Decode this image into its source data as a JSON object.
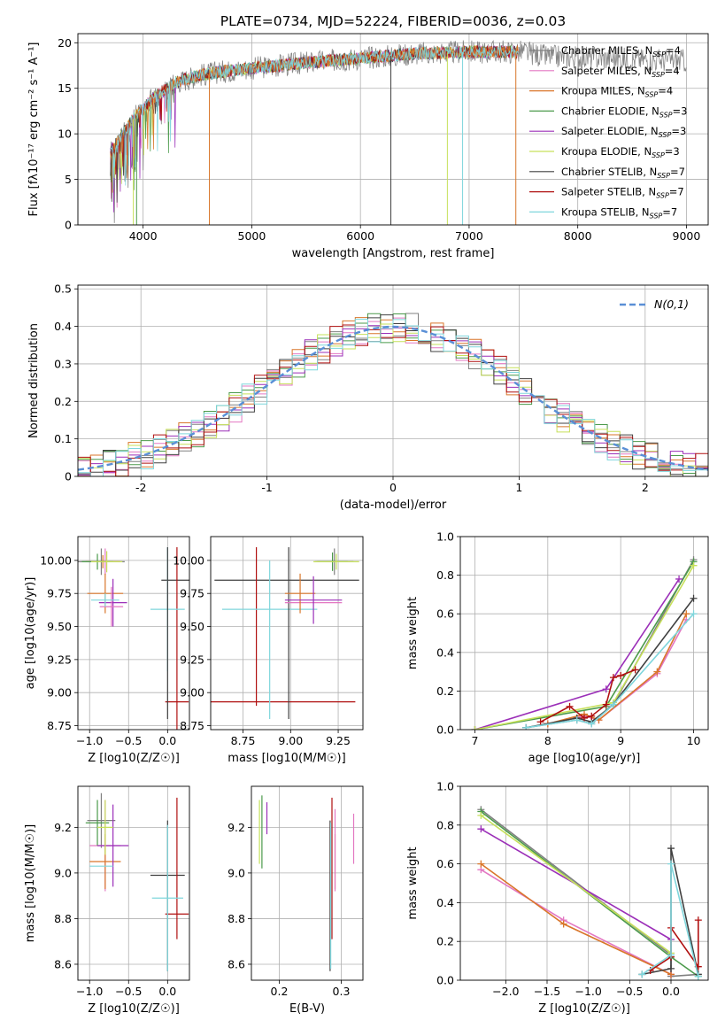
{
  "figure_title": "PLATE=0734, MJD=52224, FIBERID=0036, z=0.03",
  "models": [
    {
      "name": "Chabrier MILES",
      "nssp": "4",
      "color": "#808080"
    },
    {
      "name": "Salpeter MILES",
      "nssp": "4",
      "color": "#e377c2"
    },
    {
      "name": "Kroupa MILES",
      "nssp": "4",
      "color": "#d9762a"
    },
    {
      "name": "Chabrier ELODIE",
      "nssp": "3",
      "color": "#4b9a4b"
    },
    {
      "name": "Salpeter ELODIE",
      "nssp": "3",
      "color": "#9b2fb8"
    },
    {
      "name": "Kroupa ELODIE",
      "nssp": "3",
      "color": "#c6e05a"
    },
    {
      "name": "Chabrier STELIB",
      "nssp": "7",
      "color": "#404040"
    },
    {
      "name": "Salpeter STELIB",
      "nssp": "7",
      "color": "#b01010"
    },
    {
      "name": "Kroupa STELIB",
      "nssp": "7",
      "color": "#7fd6dc"
    }
  ],
  "chart_data": [
    {
      "id": "spectrum",
      "type": "line",
      "xlabel": "wavelength [Angstrom, rest frame]",
      "ylabel": "Flux [fλ10⁻¹⁷ erg cm⁻² s⁻¹ A⁻¹]",
      "xlim": [
        3400,
        9200
      ],
      "ylim": [
        0,
        21
      ],
      "xticks": [
        4000,
        5000,
        6000,
        7000,
        8000,
        9000
      ],
      "yticks": [
        0,
        5,
        10,
        15,
        20
      ],
      "continuum_x": [
        3700,
        3900,
        4100,
        4300,
        4500,
        4700,
        5000,
        5500,
        6000,
        6500,
        7000,
        7500,
        7700,
        8000,
        8500,
        9000
      ],
      "continuum_y": [
        8,
        11.5,
        14,
        15.6,
        16.4,
        16.8,
        17.2,
        17.8,
        18.3,
        18.8,
        19,
        19,
        18.5,
        18.4,
        18.2,
        18.0
      ]
    },
    {
      "id": "residuals",
      "type": "line",
      "xlabel": "(data-model)/error",
      "ylabel": "Normed distribution",
      "xlim": [
        -2.5,
        2.5
      ],
      "ylim": [
        0,
        0.51
      ],
      "xticks": [
        -2,
        -1,
        0,
        1,
        2
      ],
      "yticks": [
        0,
        0.1,
        0.2,
        0.3,
        0.4,
        0.5
      ],
      "legend": "N(0,1)",
      "gauss_color": "#5a8fd6",
      "legend_position": "top-right"
    },
    {
      "id": "age_vs_Z",
      "type": "scatter",
      "xlabel": "Z [log10(Z/Z☉)]",
      "ylabel": "age  [log10(age/yr)]",
      "xlim": [
        -1.15,
        0.28
      ],
      "ylim": [
        8.72,
        10.18
      ],
      "xticks": [
        -1.0,
        -0.5,
        0.0
      ],
      "xticklabels": [
        "−1.0",
        "−0.5",
        "0.0"
      ],
      "yticks": [
        8.75,
        9.0,
        9.25,
        9.5,
        9.75,
        10.0
      ],
      "yticklabels": [
        "8.75",
        "9.00",
        "9.25",
        "9.50",
        "9.75",
        "10.00"
      ],
      "points": [
        {
          "m": 0,
          "x": -0.85,
          "y": 9.99,
          "xe": 0.3,
          "ye": 0.1
        },
        {
          "m": 1,
          "x": -0.8,
          "y": 9.99,
          "xe": 0.2,
          "ye": 0.1
        },
        {
          "m": 2,
          "x": -0.8,
          "y": 9.75,
          "xe": 0.23,
          "ye": 0.15
        },
        {
          "m": 2,
          "x": -0.83,
          "y": 9.99,
          "xe": 0.22,
          "ye": 0.05
        },
        {
          "m": 3,
          "x": -0.9,
          "y": 9.99,
          "xe": 0.2,
          "ye": 0.06
        },
        {
          "m": 4,
          "x": -0.7,
          "y": 9.68,
          "xe": 0.18,
          "ye": 0.18
        },
        {
          "m": 5,
          "x": -0.78,
          "y": 9.99,
          "xe": 0.2,
          "ye": 0.08
        },
        {
          "m": 6,
          "x": 0.12,
          "y": 9.85,
          "xe": 0.2,
          "ye": 0.0
        },
        {
          "m": 7,
          "x": 0.12,
          "y": 8.93,
          "xe": 0.15,
          "ye": 1.17
        },
        {
          "m": 8,
          "x": 0.0,
          "y": 9.63,
          "xe": 0.22,
          "ye": 0.47
        },
        {
          "m": 6,
          "x": 0.0,
          "y": 9.45,
          "xe": 0.0,
          "ye": 0.65
        },
        {
          "m": 1,
          "x": -0.72,
          "y": 9.65,
          "xe": 0.15,
          "ye": 0.15
        },
        {
          "m": 8,
          "x": -0.8,
          "y": 9.7,
          "xe": 0.18,
          "ye": 0.05
        }
      ]
    },
    {
      "id": "age_vs_mass",
      "type": "scatter",
      "xlabel": "mass [log10(M/M☉)]",
      "ylabel": "",
      "xlim": [
        8.58,
        9.38
      ],
      "ylim": [
        8.72,
        10.18
      ],
      "xticks": [
        8.75,
        9.0,
        9.25
      ],
      "xticklabels": [
        "8.75",
        "9.00",
        "9.25"
      ],
      "yticks": [
        8.75,
        9.0,
        9.25,
        9.5,
        9.75,
        10.0
      ],
      "yticklabels": [
        "8.75",
        "9.00",
        "9.25",
        "9.50",
        "9.75",
        "10.00"
      ],
      "points": [
        {
          "m": 6,
          "x": 8.98,
          "y": 9.85,
          "xe": 0.38,
          "ye": 0.0
        },
        {
          "m": 7,
          "x": 8.82,
          "y": 8.93,
          "xe": 0.52,
          "ye": 0.0
        },
        {
          "m": 7,
          "x": 8.82,
          "y": 9.5,
          "xe": 0.0,
          "ye": 0.6
        },
        {
          "m": 8,
          "x": 8.89,
          "y": 9.63,
          "xe": 0.25,
          "ye": 0.0
        },
        {
          "m": 8,
          "x": 8.89,
          "y": 9.4,
          "xe": 0.0,
          "ye": 0.6
        },
        {
          "m": 6,
          "x": 8.99,
          "y": 9.45,
          "xe": 0.0,
          "ye": 0.65
        },
        {
          "m": 0,
          "x": 9.23,
          "y": 9.99,
          "xe": 0.1,
          "ye": 0.1
        },
        {
          "m": 1,
          "x": 9.12,
          "y": 9.68,
          "xe": 0.15,
          "ye": 0.0
        },
        {
          "m": 2,
          "x": 9.05,
          "y": 9.75,
          "xe": 0.08,
          "ye": 0.15
        },
        {
          "m": 3,
          "x": 9.22,
          "y": 9.99,
          "xe": 0.08,
          "ye": 0.07
        },
        {
          "m": 4,
          "x": 9.12,
          "y": 9.7,
          "xe": 0.15,
          "ye": 0.18
        },
        {
          "m": 5,
          "x": 9.24,
          "y": 9.99,
          "xe": 0.12,
          "ye": 0.06
        }
      ]
    },
    {
      "id": "weight_vs_age",
      "type": "line",
      "xlabel": "age  [log10(age/yr)]",
      "ylabel": "mass weight",
      "xlim": [
        6.8,
        10.2
      ],
      "ylim": [
        0,
        1.0
      ],
      "xticks": [
        7,
        8,
        9,
        10
      ],
      "xticklabels": [
        "7",
        "8",
        "9",
        "10"
      ],
      "yticks": [
        0,
        0.2,
        0.4,
        0.6,
        0.8,
        1.0
      ],
      "yticklabels": [
        "0.0",
        "0.2",
        "0.4",
        "0.6",
        "0.8",
        "1.0"
      ],
      "series": [
        {
          "m": 0,
          "x": [
            7.7,
            8.4,
            8.6,
            8.9,
            10.0
          ],
          "y": [
            0.01,
            0.05,
            0.03,
            0.13,
            0.88
          ]
        },
        {
          "m": 1,
          "x": [
            8.0,
            8.5,
            8.7,
            9.5,
            9.9
          ],
          "y": [
            0.03,
            0.07,
            0.05,
            0.29,
            0.57
          ]
        },
        {
          "m": 2,
          "x": [
            8.0,
            8.5,
            8.7,
            9.5,
            9.9
          ],
          "y": [
            0.03,
            0.08,
            0.05,
            0.3,
            0.6
          ]
        },
        {
          "m": 3,
          "x": [
            7.0,
            8.8,
            10.0
          ],
          "y": [
            0.0,
            0.12,
            0.87
          ]
        },
        {
          "m": 4,
          "x": [
            7.0,
            8.8,
            9.8
          ],
          "y": [
            0.0,
            0.21,
            0.78
          ]
        },
        {
          "m": 5,
          "x": [
            7.0,
            8.9,
            10.0
          ],
          "y": [
            0.0,
            0.14,
            0.85
          ]
        },
        {
          "m": 6,
          "x": [
            7.7,
            8.4,
            8.6,
            8.9,
            10.0
          ],
          "y": [
            0.01,
            0.06,
            0.04,
            0.13,
            0.68
          ]
        },
        {
          "m": 7,
          "x": [
            7.9,
            8.3,
            8.5,
            8.6,
            8.8,
            8.9,
            9.0,
            9.2
          ],
          "y": [
            0.04,
            0.12,
            0.06,
            0.07,
            0.13,
            0.27,
            0.28,
            0.31
          ]
        },
        {
          "m": 8,
          "x": [
            7.7,
            8.4,
            8.6,
            8.9,
            10.0
          ],
          "y": [
            0.01,
            0.05,
            0.03,
            0.13,
            0.6
          ]
        }
      ]
    },
    {
      "id": "mass_vs_Z",
      "type": "scatter",
      "xlabel": "Z [log10(Z/Z☉)]",
      "ylabel": "mass [log10(M/M☉)]",
      "xlim": [
        -1.15,
        0.28
      ],
      "ylim": [
        8.53,
        9.38
      ],
      "xticks": [
        -1.0,
        -0.5,
        0.0
      ],
      "xticklabels": [
        "−1.0",
        "−0.5",
        "0.0"
      ],
      "yticks": [
        8.6,
        8.8,
        9.0,
        9.2
      ],
      "yticklabels": [
        "8.6",
        "8.8",
        "9.0",
        "9.2"
      ],
      "points": [
        {
          "m": 0,
          "x": -0.85,
          "y": 9.23,
          "xe": 0.18,
          "ye": 0.12
        },
        {
          "m": 1,
          "x": -0.8,
          "y": 9.12,
          "xe": 0.2,
          "ye": 0.2
        },
        {
          "m": 2,
          "x": -0.8,
          "y": 9.05,
          "xe": 0.2,
          "ye": 0.12
        },
        {
          "m": 3,
          "x": -0.9,
          "y": 9.22,
          "xe": 0.15,
          "ye": 0.1
        },
        {
          "m": 4,
          "x": -0.7,
          "y": 9.12,
          "xe": 0.2,
          "ye": 0.18
        },
        {
          "m": 5,
          "x": -0.8,
          "y": 9.2,
          "xe": 0.1,
          "ye": 0.12
        },
        {
          "m": 8,
          "x": -0.85,
          "y": 9.03,
          "xe": 0.15,
          "ye": 0.0
        },
        {
          "m": 6,
          "x": 0.0,
          "y": 8.99,
          "xe": 0.22,
          "ye": 0.0
        },
        {
          "m": 6,
          "x": 0.0,
          "y": 8.9,
          "xe": 0.0,
          "ye": 0.33
        },
        {
          "m": 7,
          "x": 0.12,
          "y": 8.82,
          "xe": 0.15,
          "ye": 0.0
        },
        {
          "m": 7,
          "x": 0.12,
          "y": 9.02,
          "xe": 0.0,
          "ye": 0.31
        },
        {
          "m": 8,
          "x": 0.0,
          "y": 8.89,
          "xe": 0.2,
          "ye": 0.32
        }
      ]
    },
    {
      "id": "mass_vs_ebv",
      "type": "scatter",
      "xlabel": "E(B-V)",
      "ylabel": "",
      "xlim": [
        0.155,
        0.335
      ],
      "ylim": [
        8.53,
        9.38
      ],
      "xticks": [
        0.2,
        0.3
      ],
      "xticklabels": [
        "0.2",
        "0.3"
      ],
      "yticks": [
        8.6,
        8.8,
        9.0,
        9.2
      ],
      "yticklabels": [
        "8.6",
        "8.8",
        "9.0",
        "9.2"
      ],
      "points": [
        {
          "m": 3,
          "x": 0.172,
          "y": 9.18,
          "xe": 0.0,
          "ye": 0.16
        },
        {
          "m": 5,
          "x": 0.168,
          "y": 9.18,
          "xe": 0.0,
          "ye": 0.14
        },
        {
          "m": 4,
          "x": 0.18,
          "y": 9.24,
          "xe": 0.0,
          "ye": 0.07
        },
        {
          "m": 6,
          "x": 0.282,
          "y": 8.9,
          "xe": 0.0,
          "ye": 0.33
        },
        {
          "m": 7,
          "x": 0.285,
          "y": 9.02,
          "xe": 0.0,
          "ye": 0.31
        },
        {
          "m": 8,
          "x": 0.283,
          "y": 8.9,
          "xe": 0.0,
          "ye": 0.32
        },
        {
          "m": 2,
          "x": 0.29,
          "y": 9.05,
          "xe": 0.0,
          "ye": 0.12
        },
        {
          "m": 1,
          "x": 0.29,
          "y": 9.1,
          "xe": 0.0,
          "ye": 0.18
        },
        {
          "m": 1,
          "x": 0.32,
          "y": 9.15,
          "xe": 0.0,
          "ye": 0.11
        }
      ]
    },
    {
      "id": "weight_vs_Z",
      "type": "line",
      "xlabel": "Z [log10(Z/Z☉)]",
      "ylabel": "mass weight",
      "xlim": [
        -2.55,
        0.45
      ],
      "ylim": [
        0,
        1.0
      ],
      "xticks": [
        -2.0,
        -1.5,
        -1.0,
        -0.5,
        0.0
      ],
      "xticklabels": [
        "−2.0",
        "−1.5",
        "−1.0",
        "−0.5",
        "0.0"
      ],
      "yticks": [
        0,
        0.2,
        0.4,
        0.6,
        0.8,
        1.0
      ],
      "yticklabels": [
        "0.0",
        "0.2",
        "0.4",
        "0.6",
        "0.8",
        "1.0"
      ],
      "series": [
        {
          "m": 0,
          "x": [
            -2.3,
            0.0,
            0.0,
            0.33
          ],
          "y": [
            0.88,
            0.13,
            0.02,
            0.03
          ]
        },
        {
          "m": 1,
          "x": [
            -2.3,
            -1.3,
            0.0,
            0.0
          ],
          "y": [
            0.57,
            0.31,
            0.03,
            0.03
          ]
        },
        {
          "m": 2,
          "x": [
            -2.3,
            -1.3,
            0.0
          ],
          "y": [
            0.6,
            0.29,
            0.03
          ]
        },
        {
          "m": 3,
          "x": [
            -2.3,
            0.0,
            0.33
          ],
          "y": [
            0.87,
            0.12,
            0.02
          ]
        },
        {
          "m": 4,
          "x": [
            -2.3,
            0.0
          ],
          "y": [
            0.78,
            0.21
          ]
        },
        {
          "m": 5,
          "x": [
            -2.3,
            0.0
          ],
          "y": [
            0.85,
            0.14
          ]
        },
        {
          "m": 6,
          "x": [
            -0.35,
            0.0,
            0.0,
            0.33
          ],
          "y": [
            0.03,
            0.06,
            0.68,
            0.03
          ]
        },
        {
          "m": 7,
          "x": [
            -0.25,
            0.0,
            0.0,
            0.33,
            0.33
          ],
          "y": [
            0.05,
            0.12,
            0.27,
            0.07,
            0.31
          ]
        },
        {
          "m": 8,
          "x": [
            -0.35,
            0.0,
            0.0,
            0.33
          ],
          "y": [
            0.03,
            0.13,
            0.6,
            0.02
          ]
        }
      ]
    }
  ]
}
